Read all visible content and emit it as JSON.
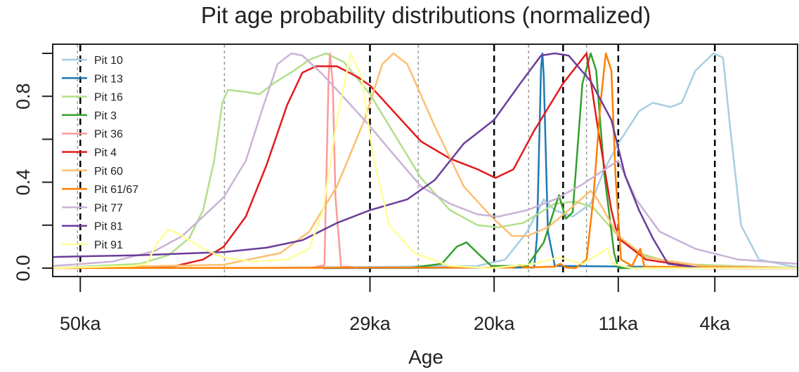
{
  "chart_data": {
    "type": "line",
    "title": "Pit age probability distributions (normalized)",
    "xlabel": "Age",
    "ylabel": "",
    "x_axis_reversed": true,
    "xlim": [
      52.0,
      -2.0
    ],
    "ylim": [
      0,
      1
    ],
    "x_ticks": [
      {
        "value": 50,
        "label": "50ka"
      },
      {
        "value": 29,
        "label": "29ka"
      },
      {
        "value": 20,
        "label": "20ka"
      },
      {
        "value": 11,
        "label": "11ka"
      },
      {
        "value": 4,
        "label": "4ka"
      }
    ],
    "y_ticks": [
      {
        "value": 0,
        "label": "0.0"
      },
      {
        "value": 0.2,
        "label": ""
      },
      {
        "value": 0.4,
        "label": "0.4"
      },
      {
        "value": 0.6,
        "label": ""
      },
      {
        "value": 0.8,
        "label": "0.8"
      },
      {
        "value": 1.0,
        "label": ""
      }
    ],
    "grid": false,
    "legend_position": "top-left",
    "reference_lines": {
      "black_dashed": [
        50,
        29,
        20,
        15,
        11,
        4
      ],
      "gray_dotted": [
        50.2,
        39.55,
        25.5,
        17.5,
        13.3
      ]
    },
    "series": [
      {
        "name": "Pit 10",
        "color": "#a6cee3",
        "x": [
          38.8,
          21.2,
          19.2,
          17.6,
          16.4,
          15.6,
          14.3,
          13.0,
          12.0,
          11.0,
          9.5,
          8.5,
          7.2,
          6.4,
          5.4,
          4.1,
          3.4,
          2.9,
          2.1,
          0.8,
          -2.0
        ],
        "y": [
          0,
          0.01,
          0.04,
          0.17,
          0.32,
          0.27,
          0.24,
          0.3,
          0.46,
          0.58,
          0.73,
          0.77,
          0.75,
          0.77,
          0.92,
          1.0,
          0.98,
          0.66,
          0.2,
          0.04,
          0.003
        ]
      },
      {
        "name": "Pit 13",
        "color": "#1f78b4",
        "x": [
          32.4,
          17.1,
          16.9,
          16.6,
          16.5,
          16.4,
          16.1,
          15.6,
          -2.0
        ],
        "y": [
          0,
          0.003,
          0.14,
          0.93,
          1.0,
          0.89,
          0.17,
          0.01,
          0
        ]
      },
      {
        "name": "Pit 16",
        "color": "#b2df8a",
        "x": [
          52.0,
          45.7,
          43.6,
          42.1,
          41.1,
          40.3,
          39.7,
          39.3,
          38.0,
          37.0,
          36.0,
          34.5,
          33.4,
          32.2,
          30.9,
          29.0,
          27.3,
          25.3,
          23.2,
          21.2,
          19.7,
          17.9,
          15.6,
          14.1,
          12.8,
          11.0,
          9.5,
          6.9,
          -2.0
        ],
        "y": [
          0,
          0.02,
          0.06,
          0.14,
          0.27,
          0.5,
          0.77,
          0.83,
          0.82,
          0.81,
          0.86,
          0.92,
          0.97,
          1.0,
          0.96,
          0.81,
          0.63,
          0.42,
          0.27,
          0.2,
          0.19,
          0.21,
          0.3,
          0.31,
          0.28,
          0.15,
          0.07,
          0.02,
          0
        ]
      },
      {
        "name": "Pit 3",
        "color": "#33a02c",
        "x": [
          26.3,
          23.8,
          22.7,
          22.0,
          21.2,
          20.2,
          17.6,
          16.4,
          15.3,
          14.8,
          14.3,
          13.6,
          13.0,
          12.6,
          12.0,
          11.3,
          11.0,
          -2.0
        ],
        "y": [
          0,
          0.02,
          0.1,
          0.12,
          0.07,
          0.01,
          0.01,
          0.12,
          0.34,
          0.23,
          0.26,
          0.86,
          1.0,
          0.92,
          0.43,
          0.07,
          0,
          0
        ]
      },
      {
        "name": "Pit 36",
        "color": "#fb9a99",
        "x": [
          33.4,
          32.3,
          32.0,
          31.9,
          31.7,
          31.5,
          31.1,
          30.5,
          29.9
        ],
        "y": [
          0,
          0.013,
          0.89,
          1.0,
          0.86,
          0.33,
          0.007,
          0.007,
          0
        ]
      },
      {
        "name": "Pit 4",
        "color": "#e31a1c",
        "x": [
          52.0,
          43.1,
          41.1,
          39.6,
          38.0,
          36.5,
          35.0,
          33.9,
          32.9,
          31.4,
          29.9,
          29.0,
          27.3,
          25.3,
          23.2,
          21.2,
          19.9,
          18.6,
          17.1,
          15.0,
          13.3,
          12.5,
          11.5,
          11.0,
          9.0,
          4.9,
          -2.0
        ],
        "y": [
          0,
          0.01,
          0.04,
          0.1,
          0.24,
          0.48,
          0.76,
          0.91,
          0.94,
          0.94,
          0.89,
          0.85,
          0.73,
          0.59,
          0.51,
          0.46,
          0.42,
          0.46,
          0.64,
          0.86,
          1.0,
          0.66,
          0.27,
          0.14,
          0.04,
          0,
          0
        ]
      },
      {
        "name": "Pit 60",
        "color": "#fdbf6f",
        "x": [
          52.0,
          39.6,
          35.5,
          33.4,
          31.4,
          29.4,
          28.1,
          27.3,
          26.3,
          24.3,
          22.2,
          20.2,
          18.7,
          17.6,
          16.1,
          14.6,
          13.0,
          12.5,
          11.0,
          9.0,
          4.9,
          -2.0
        ],
        "y": [
          0,
          0.016,
          0.07,
          0.17,
          0.38,
          0.69,
          0.95,
          1.0,
          0.95,
          0.66,
          0.38,
          0.24,
          0.15,
          0.15,
          0.19,
          0.27,
          0.36,
          0.32,
          0.15,
          0.05,
          0.01,
          0
        ]
      },
      {
        "name": "Pit 61/67",
        "color": "#ff7f00",
        "x": [
          52.0,
          18.7,
          18.1,
          17.9,
          15.6,
          15.2,
          14.8,
          14.1,
          13.3,
          12.8,
          12.3,
          11.9,
          11.5,
          11.2,
          10.8,
          10.0,
          9.4,
          9.1,
          -2.0
        ],
        "y": [
          0,
          0.003,
          0.016,
          0.003,
          0.007,
          0.02,
          0.003,
          0,
          0.04,
          0.33,
          0.76,
          1.0,
          0.92,
          0.43,
          0.04,
          0.01,
          0.09,
          0.007,
          0
        ]
      },
      {
        "name": "Pit 77",
        "color": "#cab2d6",
        "x": [
          52.0,
          47.7,
          44.6,
          42.6,
          40.6,
          39.6,
          38.0,
          36.7,
          35.7,
          34.7,
          33.9,
          32.4,
          30.4,
          29.0,
          27.3,
          25.3,
          23.2,
          21.2,
          19.7,
          17.6,
          15.6,
          13.6,
          11.5,
          11.0,
          9.7,
          8.0,
          5.4,
          2.3,
          -2.0
        ],
        "y": [
          0.01,
          0.03,
          0.08,
          0.15,
          0.27,
          0.33,
          0.5,
          0.76,
          0.95,
          1.0,
          0.99,
          0.9,
          0.76,
          0.66,
          0.53,
          0.38,
          0.3,
          0.25,
          0.24,
          0.27,
          0.32,
          0.39,
          0.48,
          0.5,
          0.32,
          0.17,
          0.09,
          0.04,
          0.02
        ]
      },
      {
        "name": "Pit 81",
        "color": "#6a3d9a",
        "x": [
          52.0,
          45.7,
          39.6,
          36.5,
          33.9,
          31.4,
          29.0,
          26.3,
          24.3,
          22.2,
          20.0,
          18.1,
          16.6,
          15.6,
          14.6,
          13.0,
          11.5,
          10.5,
          9.5,
          8.5,
          7.4,
          4.9,
          -2.0
        ],
        "y": [
          0.052,
          0.06,
          0.075,
          0.095,
          0.13,
          0.21,
          0.27,
          0.32,
          0.41,
          0.58,
          0.69,
          0.86,
          0.99,
          1.0,
          0.99,
          0.87,
          0.69,
          0.43,
          0.27,
          0.14,
          0.02,
          0,
          0
        ]
      },
      {
        "name": "Pit 91",
        "color": "#ffff99",
        "x": [
          52.0,
          46.2,
          45.2,
          44.4,
          43.6,
          42.6,
          41.1,
          39.6,
          37.5,
          35.0,
          33.4,
          32.4,
          31.4,
          30.4,
          29.6,
          28.8,
          27.6,
          25.8,
          23.2,
          20.2,
          17.1,
          15.3,
          13.6,
          11.8,
          11.4,
          10.0,
          -2.0
        ],
        "y": [
          0,
          0.01,
          0.02,
          0.12,
          0.18,
          0.15,
          0.09,
          0.05,
          0.03,
          0.04,
          0.09,
          0.27,
          0.69,
          1.0,
          0.89,
          0.53,
          0.2,
          0.07,
          0.01,
          0,
          0.02,
          0.05,
          0.02,
          0.09,
          0.02,
          0,
          0
        ]
      }
    ]
  }
}
